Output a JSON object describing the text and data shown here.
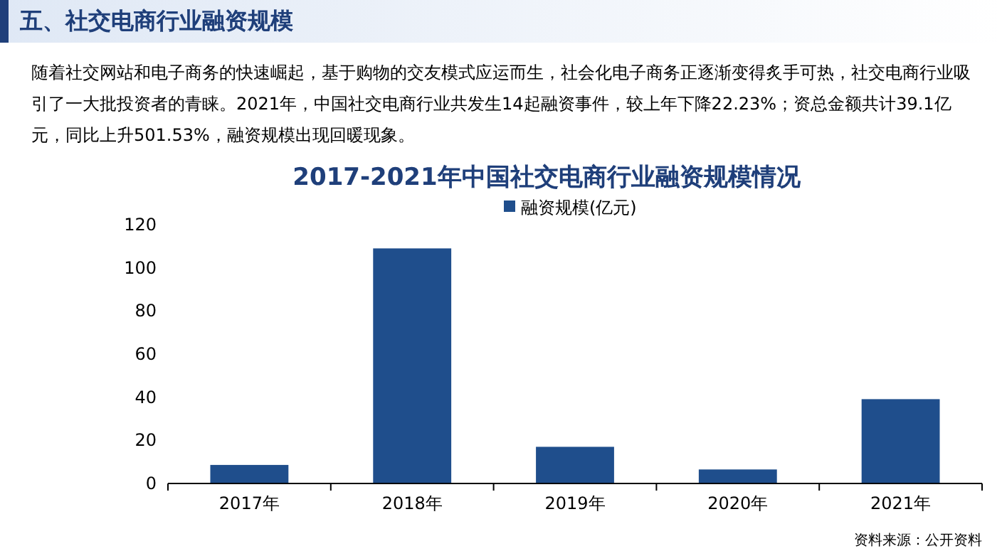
{
  "chart_data": {
    "type": "bar",
    "title": "2017-2021年中国社交电商行业融资规模情况",
    "categories": [
      "2017年",
      "2018年",
      "2019年",
      "2020年",
      "2021年"
    ],
    "series": [
      {
        "name": "融资规模(亿元)",
        "color": "#1f4e8c",
        "values": [
          8.6,
          109,
          17,
          6.5,
          39.1
        ]
      }
    ],
    "ylim": [
      0,
      120
    ],
    "yticks": [
      0,
      20,
      40,
      60,
      80,
      100,
      120
    ],
    "legend": "top",
    "annotations": [
      "五、社交电商行业融资规模",
      "随着社交网站和电子商务的快速崛起，基于购物的交友模式应运而生，社会化电子商务正逐渐变得炙手可热，社交电商行业吸引了一大批投资者的青睐。2021年，中国社交电商行业共发生14起融资事件，较上年下降22.23%；资总金额共计39.1亿元，同比上升501.53%，融资规模出现回暖现象。",
      "资料来源：公开资料"
    ]
  }
}
